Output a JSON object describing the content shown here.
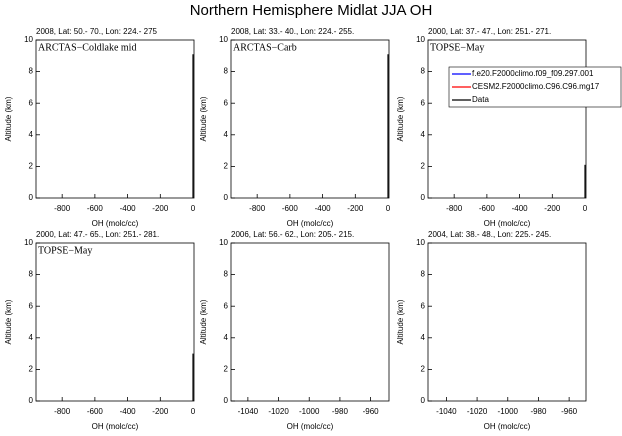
{
  "title": "Northern Hemisphere Midlat JJA OH",
  "chart_data": [
    {
      "type": "line",
      "subtitle": "2008, Lat:  50.- 70., Lon: 224.- 275",
      "label": "ARCTAS−Coldlake mid",
      "xlabel": "OH (molc/cc)",
      "ylabel": "Altitude (km)",
      "xlim": [
        -960,
        6
      ],
      "xticks": [
        -800,
        -600,
        -400,
        -200,
        0
      ],
      "ylim": [
        0,
        10
      ],
      "yticks": [
        0,
        2,
        4,
        6,
        8,
        10
      ],
      "series": [
        {
          "color": "#000000",
          "x": [
            0,
            0
          ],
          "y": [
            0,
            9.1
          ]
        }
      ]
    },
    {
      "type": "line",
      "subtitle": "2008, Lat:  33.- 40., Lon: 224.- 255.",
      "label": "ARCTAS−Carb",
      "xlabel": "OH (molc/cc)",
      "ylabel": "Altitude (km)",
      "xlim": [
        -960,
        6
      ],
      "xticks": [
        -800,
        -600,
        -400,
        -200,
        0
      ],
      "ylim": [
        0,
        10
      ],
      "yticks": [
        0,
        2,
        4,
        6,
        8,
        10
      ],
      "series": [
        {
          "color": "#000000",
          "x": [
            0,
            0
          ],
          "y": [
            0,
            9.1
          ]
        }
      ]
    },
    {
      "type": "line",
      "subtitle": "2000, Lat:  37.- 47., Lon: 251.- 271.",
      "label": "TOPSE−May",
      "xlabel": "OH (molc/cc)",
      "ylabel": "Altitude (km)",
      "xlim": [
        -960,
        6
      ],
      "xticks": [
        -800,
        -600,
        -400,
        -200,
        0
      ],
      "ylim": [
        0,
        10
      ],
      "yticks": [
        0,
        2,
        4,
        6,
        8,
        10
      ],
      "legend": "upper right",
      "series": [
        {
          "name": "f.e20.F2000climo.f09_f09.297.001",
          "color": "#0000ff"
        },
        {
          "name": "CESM2.F2000climo.C96.C96.mg17",
          "color": "#ff0000"
        },
        {
          "name": "Data",
          "color": "#000000",
          "x": [
            0,
            0
          ],
          "y": [
            0,
            2.1
          ]
        }
      ]
    },
    {
      "type": "line",
      "subtitle": "2000, Lat:  47.- 65., Lon: 251.- 281.",
      "label": "TOPSE−May",
      "xlabel": "OH (molc/cc)",
      "ylabel": "Altitude (km)",
      "xlim": [
        -960,
        6
      ],
      "xticks": [
        -800,
        -600,
        -400,
        -200,
        0
      ],
      "ylim": [
        0,
        10
      ],
      "yticks": [
        0,
        2,
        4,
        6,
        8,
        10
      ],
      "series": [
        {
          "color": "#000000",
          "x": [
            0,
            0
          ],
          "y": [
            0,
            3
          ]
        }
      ]
    },
    {
      "type": "line",
      "subtitle": "2006, Lat:  56.- 62., Lon: 205.- 215.",
      "xlabel": "OH (molc/cc)",
      "ylabel": "Altitude (km)",
      "xlim": [
        -1051,
        -948
      ],
      "xticks": [
        -1040,
        -1020,
        -1000,
        -980,
        -960
      ],
      "ylim": [
        0,
        10
      ],
      "yticks": [
        0,
        2,
        4,
        6,
        8,
        10
      ],
      "series": []
    },
    {
      "type": "line",
      "subtitle": "2004, Lat:  38.- 48., Lon: 225.- 245.",
      "xlabel": "OH (molc/cc)",
      "ylabel": "Altitude (km)",
      "xlim": [
        -1052,
        -949
      ],
      "xticks": [
        -1040,
        -1020,
        -1000,
        -980,
        -960
      ],
      "ylim": [
        0,
        10
      ],
      "yticks": [
        0,
        2,
        4,
        6,
        8,
        10
      ],
      "series": []
    }
  ]
}
